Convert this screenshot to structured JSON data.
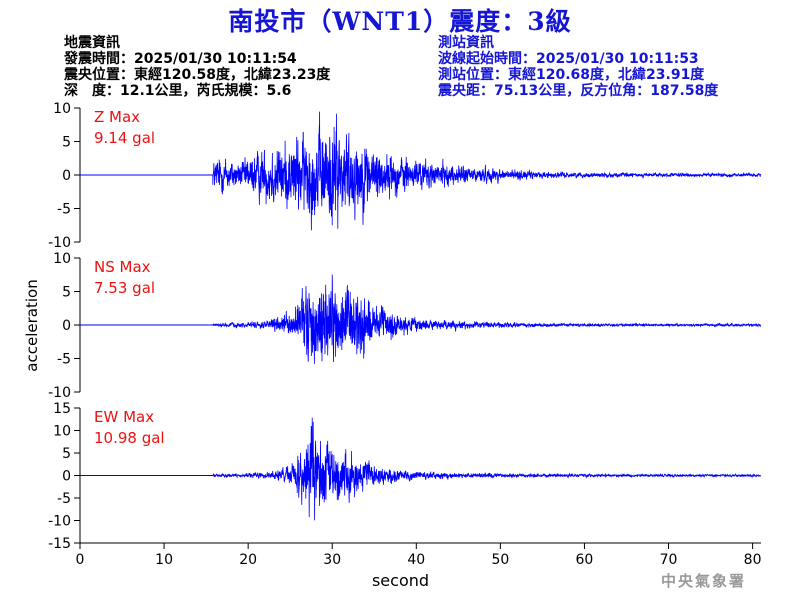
{
  "title": "南投市（WNT1）震度：3級",
  "event_info": {
    "heading": "地震資訊",
    "origin_time": "發震時間：2025/01/30 10:11:54",
    "epicenter": "震央位置：東經120.58度，北緯23.23度",
    "depth_magnitude": "深　度：12.1公里，芮氏規模：5.6"
  },
  "station_info": {
    "heading": "測站資訊",
    "wave_start": "波線起始時間：2025/01/30 10:11:53",
    "station_location": "測站位置：東經120.68度，北緯23.91度",
    "distance_azimuth": "震央距：75.13公里，反方位角：187.58度"
  },
  "credit": "中央氣象署",
  "chart_data": [
    {
      "type": "line",
      "component": "Z",
      "label_line1": "Z Max",
      "label_line2": "9.14 gal",
      "peak": 9.14,
      "ylim": [
        -10,
        10
      ],
      "yticks": [
        -10,
        -5,
        0,
        5,
        10
      ],
      "xlim": [
        0,
        81
      ],
      "onset": 15.8,
      "peak_time": 30.5,
      "noise": 0.25,
      "sigma": 5.5,
      "envelope": [
        [
          15.8,
          0.25
        ],
        [
          16.5,
          0.35
        ],
        [
          19,
          0.25
        ],
        [
          22,
          0.5
        ],
        [
          25,
          0.65
        ],
        [
          28,
          0.85
        ],
        [
          30.5,
          1.0
        ],
        [
          33,
          0.75
        ],
        [
          36,
          0.45
        ],
        [
          40,
          0.28
        ],
        [
          45,
          0.18
        ],
        [
          50,
          0.12
        ],
        [
          55,
          0.06
        ],
        [
          60,
          0.045
        ],
        [
          70,
          0.035
        ],
        [
          81,
          0.03
        ]
      ],
      "series_color": "#0000ff",
      "ylabel": ""
    },
    {
      "type": "line",
      "component": "NS",
      "label_line1": "NS Max",
      "label_line2": "7.53 gal",
      "peak": 7.53,
      "ylim": [
        -10,
        10
      ],
      "yticks": [
        -10,
        -5,
        0,
        5,
        10
      ],
      "xlim": [
        0,
        81
      ],
      "onset": 15.8,
      "peak_time": 30,
      "noise": 0.1,
      "sigma": 5.5,
      "envelope": [
        [
          15.8,
          0.03
        ],
        [
          18,
          0.05
        ],
        [
          22,
          0.08
        ],
        [
          25,
          0.25
        ],
        [
          27,
          0.85
        ],
        [
          30,
          1.0
        ],
        [
          33,
          0.85
        ],
        [
          35,
          0.45
        ],
        [
          38,
          0.2
        ],
        [
          42,
          0.12
        ],
        [
          48,
          0.07
        ],
        [
          55,
          0.04
        ],
        [
          65,
          0.03
        ],
        [
          81,
          0.025
        ]
      ],
      "series_color": "#0000ff",
      "ylabel": "acceleration"
    },
    {
      "type": "line",
      "component": "EW",
      "label_line1": "EW Max",
      "label_line2": "10.98 gal",
      "peak": 10.98,
      "ylim": [
        -15,
        15
      ],
      "yticks": [
        -15,
        -10,
        -5,
        0,
        5,
        10,
        15
      ],
      "xlim": [
        0,
        81
      ],
      "onset": 15.8,
      "peak_time": 27.5,
      "noise": 0.1,
      "sigma": 8.0,
      "envelope": [
        [
          15.8,
          0.03
        ],
        [
          18,
          0.04
        ],
        [
          22,
          0.07
        ],
        [
          25,
          0.2
        ],
        [
          27.5,
          1.0
        ],
        [
          30,
          0.7
        ],
        [
          33,
          0.4
        ],
        [
          36,
          0.2
        ],
        [
          40,
          0.1
        ],
        [
          45,
          0.06
        ],
        [
          55,
          0.04
        ],
        [
          65,
          0.03
        ],
        [
          81,
          0.025
        ]
      ],
      "series_color": "#0000ff",
      "ylabel": ""
    }
  ],
  "x_axis": {
    "label": "second",
    "ticks": [
      0,
      10,
      20,
      30,
      40,
      50,
      60,
      70,
      80
    ],
    "xlim": [
      0,
      81
    ]
  },
  "colors": {
    "title": "#1515d6",
    "station_info": "#1515d6",
    "max_label": "#ee1111",
    "trace": "#0000ff",
    "credit": "#9a9a9a"
  }
}
